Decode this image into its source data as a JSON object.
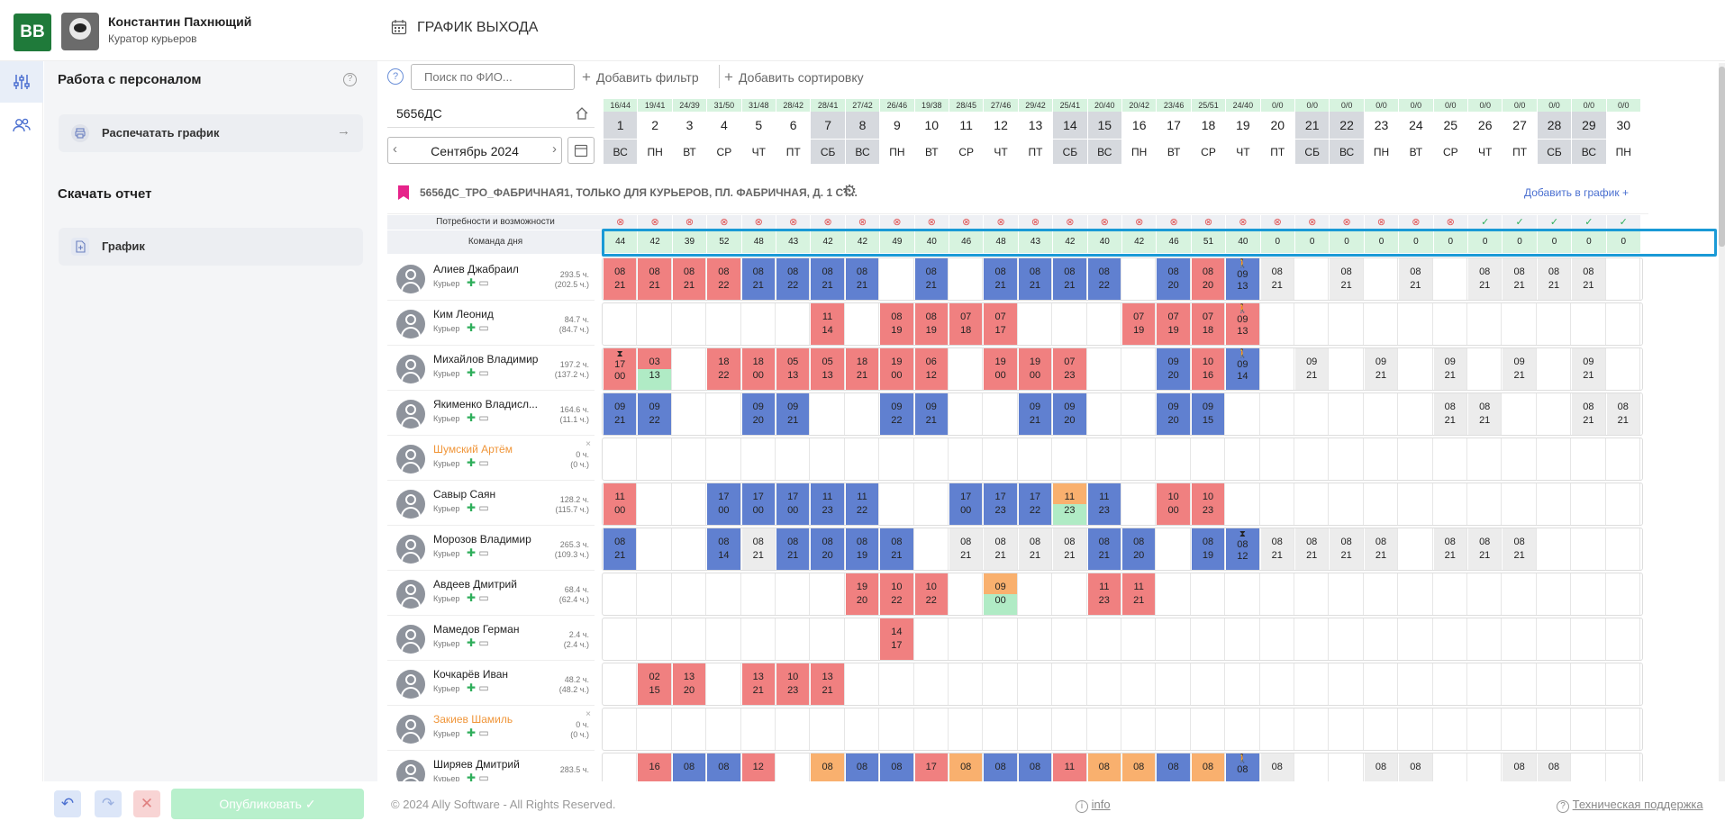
{
  "header": {
    "logo": "BB",
    "user_name": "Константин Пахнющий",
    "user_role": "Куратор курьеров",
    "page_title": "ГРАФИК ВЫХОДА"
  },
  "sidebar": {
    "section1": "Работа с персоналом",
    "print_button": "Распечатать график",
    "section2": "Скачать отчет",
    "report_button": "График"
  },
  "toolbar": {
    "help": "?",
    "search_placeholder": "Поиск по ФИО...",
    "add_filter": "Добавить фильтр",
    "add_sort": "Добавить сортировку"
  },
  "store": {
    "code": "5656ДС",
    "month": "Сентябрь 2024"
  },
  "location": {
    "title": "5656ДС_ТРО_ФАБРИЧНАЯ1, ТОЛЬКО ДЛЯ КУРЬЕРОВ, ПЛ. ФАБРИЧНАЯ, Д. 1 СТ...",
    "add_to_schedule": "Добавить в график"
  },
  "row_labels": {
    "needs": "Потребности и возможности",
    "team": "Команда дня"
  },
  "days": {
    "ratios": [
      "16/44",
      "19/41",
      "24/39",
      "31/50",
      "31/48",
      "28/42",
      "28/41",
      "27/42",
      "26/46",
      "19/38",
      "28/45",
      "27/46",
      "29/42",
      "25/41",
      "20/40",
      "20/42",
      "23/46",
      "25/51",
      "24/40",
      "0/0",
      "0/0",
      "0/0",
      "0/0",
      "0/0",
      "0/0",
      "0/0",
      "0/0",
      "0/0",
      "0/0",
      "0/0"
    ],
    "numbers": [
      "1",
      "2",
      "3",
      "4",
      "5",
      "6",
      "7",
      "8",
      "9",
      "10",
      "11",
      "12",
      "13",
      "14",
      "15",
      "16",
      "17",
      "18",
      "19",
      "20",
      "21",
      "22",
      "23",
      "24",
      "25",
      "26",
      "27",
      "28",
      "29",
      "30"
    ],
    "weekdays": [
      "ВС",
      "ПН",
      "ВТ",
      "СР",
      "ЧТ",
      "ПТ",
      "СБ",
      "ВС",
      "ПН",
      "ВТ",
      "СР",
      "ЧТ",
      "ПТ",
      "СБ",
      "ВС",
      "ПН",
      "ВТ",
      "СР",
      "ЧТ",
      "ПТ",
      "СБ",
      "ВС",
      "ПН",
      "ВТ",
      "СР",
      "ЧТ",
      "ПТ",
      "СБ",
      "ВС",
      "ПН"
    ],
    "needs_ok": [
      0,
      0,
      0,
      0,
      0,
      0,
      0,
      0,
      0,
      0,
      0,
      0,
      0,
      0,
      0,
      0,
      0,
      0,
      0,
      0,
      0,
      0,
      0,
      0,
      0,
      1,
      1,
      1,
      1,
      1
    ],
    "team": [
      "44",
      "42",
      "39",
      "52",
      "48",
      "43",
      "42",
      "42",
      "49",
      "40",
      "46",
      "48",
      "43",
      "42",
      "40",
      "42",
      "46",
      "51",
      "40",
      "0",
      "0",
      "0",
      "0",
      "0",
      "0",
      "0",
      "0",
      "0",
      "0",
      "0"
    ]
  },
  "employees": [
    {
      "name": "Алиев Джабраил",
      "role": "Курьер",
      "hours": "293.5 ч.",
      "sub": "(202.5 ч.)",
      "warn": false,
      "cells": [
        "r:08:21",
        "r:08:21",
        "r:08:21",
        "r:08:22",
        "b:08:21",
        "b:08:22",
        "b:08:21",
        "b:08:21",
        "",
        "b:08:21",
        "",
        "b:08:21",
        "b:08:21",
        "b:08:21",
        "b:08:22",
        "",
        "b:08:20",
        "r:08:20",
        "b:09:13:walk",
        "g:08:21",
        "",
        "g:08:21",
        "",
        "g:08:21",
        "",
        "g:08:21",
        "g:08:21",
        "g:08:21",
        "g:08:21",
        ""
      ]
    },
    {
      "name": "Ким Леонид",
      "role": "Курьер",
      "hours": "84.7 ч.",
      "sub": "(84.7 ч.)",
      "warn": false,
      "cells": [
        "",
        "",
        "",
        "",
        "",
        "",
        "r:11:14",
        "",
        "r:08:19",
        "r:08:19",
        "r:07:18",
        "r:07:17",
        "",
        "",
        "",
        "r:07:19",
        "r:07:19",
        "r:07:18",
        "r:09:13:walk",
        "",
        "",
        "",
        "",
        "",
        "",
        "",
        "",
        "",
        "",
        ""
      ]
    },
    {
      "name": "Михайлов Владимир",
      "role": "Курьер",
      "hours": "197.2 ч.",
      "sub": "(137.2 ч.)",
      "warn": false,
      "cells": [
        "r:17:00:hour",
        "rG:03:13",
        "",
        "r:18:22",
        "r:18:00",
        "r:05:13",
        "r:05:13",
        "r:18:21",
        "r:19:00",
        "r:06:12",
        "",
        "r:19:00",
        "r:19:00",
        "r:07:23",
        "",
        "",
        "b:09:20",
        "r:10:16",
        "b:09:14:walk",
        "",
        "g:09:21",
        "",
        "g:09:21",
        "",
        "g:09:21",
        "",
        "g:09:21",
        "",
        "g:09:21",
        ""
      ]
    },
    {
      "name": "Якименко Владисл...",
      "role": "Курьер",
      "hours": "164.6 ч.",
      "sub": "(11.1 ч.)",
      "warn": false,
      "cells": [
        "b:09:21",
        "b:09:22",
        "",
        "",
        "b:09:20",
        "b:09:21",
        "",
        "",
        "b:09:22",
        "b:09:21",
        "",
        "",
        "b:09:21",
        "b:09:20",
        "",
        "",
        "b:09:20",
        "b:09:15",
        "",
        "",
        "",
        "",
        "",
        "",
        "g:08:21",
        "g:08:21",
        "",
        "",
        "g:08:21",
        "g:08:21"
      ]
    },
    {
      "name": "Шумский Артём",
      "role": "Курьер",
      "hours": "0 ч.",
      "sub": "(0 ч.)",
      "warn": true,
      "cells": [
        "",
        "",
        "",
        "",
        "",
        "",
        "",
        "",
        "",
        "",
        "",
        "",
        "",
        "",
        "",
        "",
        "",
        "",
        "",
        "",
        "",
        "",
        "",
        "",
        "",
        "",
        "",
        "",
        "",
        ""
      ]
    },
    {
      "name": "Савыр Саян",
      "role": "Курьер",
      "hours": "128.2 ч.",
      "sub": "(115.7 ч.)",
      "warn": false,
      "cells": [
        "r:11:00",
        "",
        "",
        "b:17:00",
        "b:17:00",
        "b:17:00",
        "b:11:23",
        "b:11:22",
        "",
        "",
        "b:17:00",
        "b:17:23",
        "b:17:22",
        "oG:11:23",
        "b:11:23",
        "",
        "r:10:00",
        "r:10:23",
        "",
        "",
        "",
        "",
        "",
        "",
        "",
        "",
        "",
        "",
        "",
        ""
      ]
    },
    {
      "name": "Морозов Владимир",
      "role": "Курьер",
      "hours": "265.3 ч.",
      "sub": "(109.3 ч.)",
      "warn": false,
      "cells": [
        "b:08:21",
        "",
        "",
        "b:08:14",
        "g:08:21",
        "b:08:21",
        "b:08:20",
        "b:08:19",
        "b:08:21",
        "",
        "g:08:21",
        "g:08:21",
        "g:08:21",
        "g:08:21",
        "b:08:21",
        "b:08:20",
        "",
        "b:08:19",
        "b:08:12:hour",
        "g:08:21",
        "g:08:21",
        "g:08:21",
        "g:08:21",
        "",
        "g:08:21",
        "g:08:21",
        "g:08:21",
        "",
        "",
        ""
      ]
    },
    {
      "name": "Авдеев Дмитрий",
      "role": "Курьер",
      "hours": "68.4 ч.",
      "sub": "(62.4 ч.)",
      "warn": false,
      "cells": [
        "",
        "",
        "",
        "",
        "",
        "",
        "",
        "r:19:20",
        "r:10:22",
        "r:10:22",
        "",
        "oG:09:00",
        "",
        "",
        "r:11:23",
        "r:11:21",
        "",
        "",
        "",
        "",
        "",
        "",
        "",
        "",
        "",
        "",
        "",
        "",
        "",
        ""
      ]
    },
    {
      "name": "Мамедов Герман",
      "role": "Курьер",
      "hours": "2.4 ч.",
      "sub": "(2.4 ч.)",
      "warn": false,
      "cells": [
        "",
        "",
        "",
        "",
        "",
        "",
        "",
        "",
        "r:14:17",
        "",
        "",
        "",
        "",
        "",
        "",
        "",
        "",
        "",
        "",
        "",
        "",
        "",
        "",
        "",
        "",
        "",
        "",
        "",
        "",
        ""
      ]
    },
    {
      "name": "Кочкарёв Иван",
      "role": "Курьер",
      "hours": "48.2 ч.",
      "sub": "(48.2 ч.)",
      "warn": false,
      "cells": [
        "",
        "r:02:15",
        "r:13:20",
        "",
        "r:13:21",
        "r:10:23",
        "r:13:21",
        "",
        "",
        "",
        "",
        "",
        "",
        "",
        "",
        "",
        "",
        "",
        "",
        "",
        "",
        "",
        "",
        "",
        "",
        "",
        "",
        "",
        "",
        ""
      ]
    },
    {
      "name": "Закиев Шамиль",
      "role": "Курьер",
      "hours": "0 ч.",
      "sub": "(0 ч.)",
      "warn": true,
      "cells": [
        "",
        "",
        "",
        "",
        "",
        "",
        "",
        "",
        "",
        "",
        "",
        "",
        "",
        "",
        "",
        "",
        "",
        "",
        "",
        "",
        "",
        "",
        "",
        "",
        "",
        "",
        "",
        "",
        "",
        ""
      ]
    },
    {
      "name": "Ширяев Дмитрий",
      "role": "Курьер",
      "hours": "283.5 ч.",
      "sub": "",
      "warn": false,
      "cells": [
        "",
        "r:16:",
        "b:08:",
        "b:08:",
        "r:12:",
        "",
        "o:08:",
        "b:08:",
        "b:08:",
        "r:17:",
        "o:08:",
        "b:08:",
        "b:08:",
        "r:11:",
        "o:08:",
        "o:08:",
        "b:08:",
        "o:08:",
        "b:08::walk",
        "g:08:",
        "",
        "",
        "g:08:",
        "g:08:",
        "",
        "",
        "g:08:",
        "g:08:",
        "",
        ""
      ]
    }
  ],
  "footer": {
    "copyright": "© 2024 Ally Software - All Rights Reserved.",
    "info": "info",
    "support": "Техническая поддержка",
    "publish": "Опубликовать"
  },
  "colors": {
    "red": "#f08080",
    "blue": "#6080d0",
    "orange": "#f9b06e",
    "green": "#b0ebc5",
    "gray": "#ececec",
    "accent": "#1f7a3a",
    "highlight": "#1a9ad6"
  }
}
